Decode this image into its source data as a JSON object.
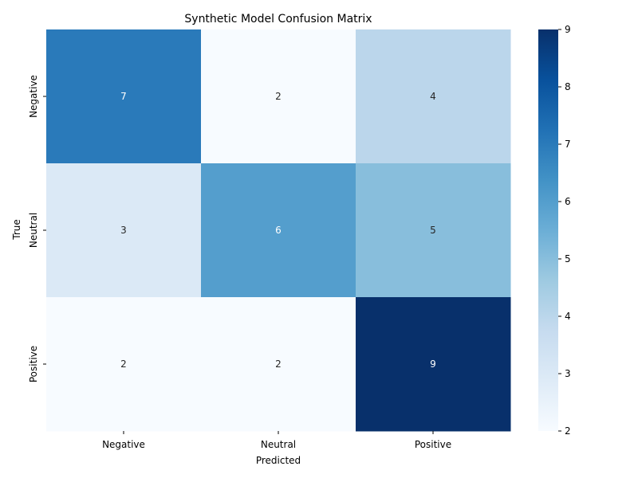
{
  "chart_data": {
    "type": "heatmap",
    "title": "Synthetic Model Confusion Matrix",
    "xlabel": "Predicted",
    "ylabel": "True",
    "x_categories": [
      "Negative",
      "Neutral",
      "Positive"
    ],
    "y_categories": [
      "Negative",
      "Neutral",
      "Positive"
    ],
    "values": [
      [
        7,
        2,
        4
      ],
      [
        3,
        6,
        5
      ],
      [
        2,
        2,
        9
      ]
    ],
    "colorbar": {
      "min": 2,
      "max": 9,
      "ticks": [
        2,
        3,
        4,
        5,
        6,
        7,
        8,
        9
      ],
      "colormap": "Blues"
    },
    "annotations": true,
    "grid": false
  }
}
